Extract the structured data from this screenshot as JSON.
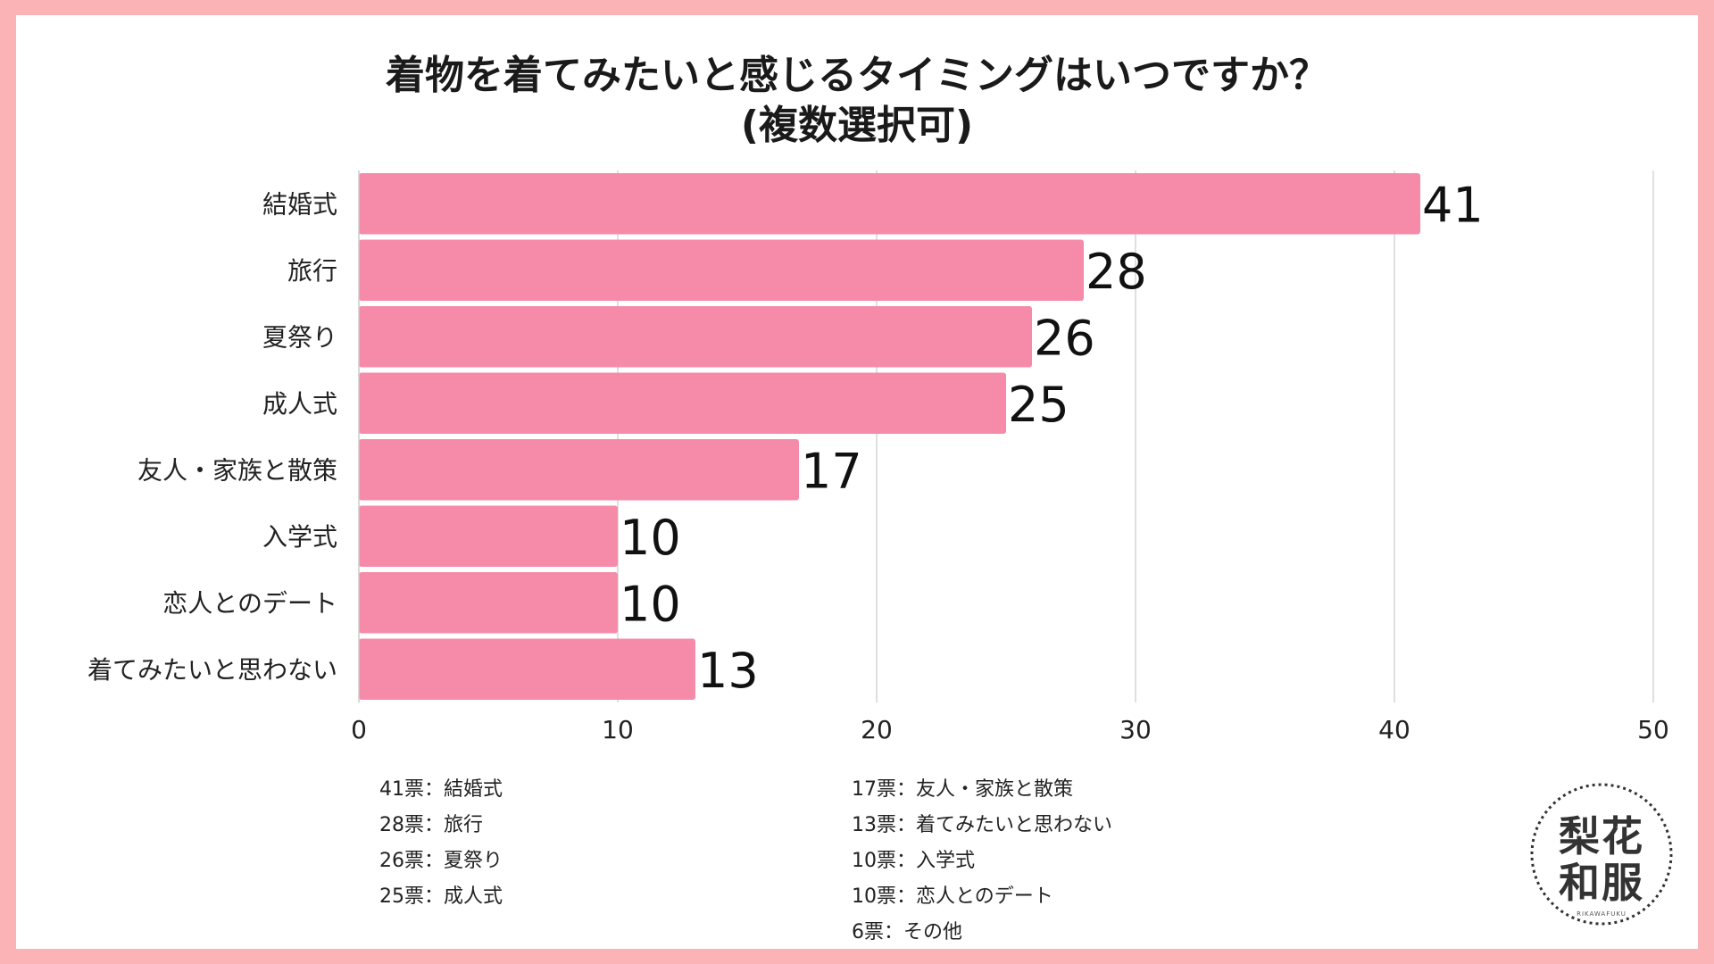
{
  "title": {
    "line1": "着物を着てみたいと感じるタイミングはいつですか？",
    "line2": "(複数選択可)"
  },
  "chart_data": {
    "type": "bar",
    "orientation": "horizontal",
    "categories": [
      "結婚式",
      "旅行",
      "夏祭り",
      "成人式",
      "友人・家族と散策",
      "入学式",
      "恋人とのデート",
      "着てみたいと思わない"
    ],
    "values": [
      41,
      28,
      26,
      25,
      17,
      10,
      10,
      13
    ],
    "xlim": [
      0,
      50
    ],
    "xticks": [
      0,
      10,
      20,
      30,
      40,
      50
    ],
    "grid": true,
    "bar_color": "#f58ba9",
    "gridline_color": "#d6d6d6"
  },
  "notes": {
    "left": [
      "41票：結婚式",
      "28票：旅行",
      "26票：夏祭り",
      "25票：成人式"
    ],
    "right": [
      "17票：友人・家族と散策",
      "13票：着てみたいと思わない",
      "10票：入学式",
      "10票：恋人とのデート",
      "6票：その他"
    ]
  },
  "logo": {
    "line1": "梨花",
    "line2": "和服",
    "sub": "RIKAWAFUKU"
  },
  "colors": {
    "border": "#fbb3b5",
    "background": "#ffffff"
  }
}
